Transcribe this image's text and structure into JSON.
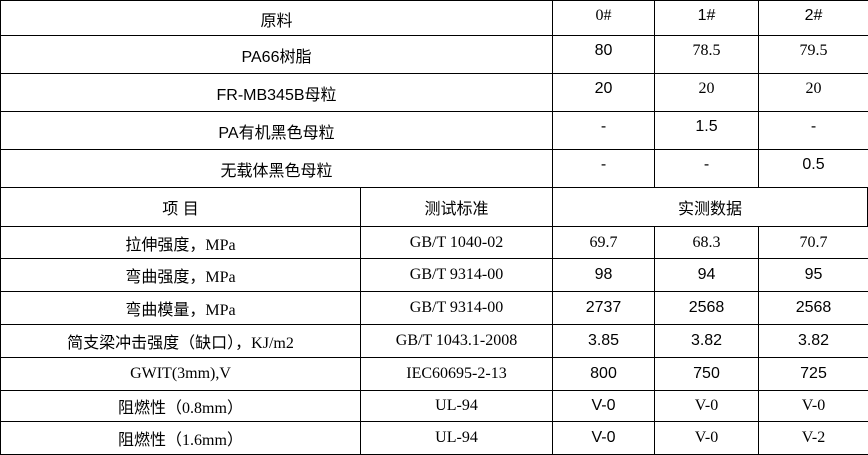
{
  "formulation": {
    "header": [
      "原料",
      "0#",
      "1#",
      "2#"
    ],
    "rows": [
      {
        "material": "PA66树脂",
        "values": [
          "80",
          "78.5",
          "79.5"
        ]
      },
      {
        "material": "FR-MB345B母粒",
        "values": [
          "20",
          "20",
          "20"
        ]
      },
      {
        "material": "PA有机黑色母粒",
        "values": [
          "-",
          "1.5",
          "-"
        ]
      },
      {
        "material": "无载体黑色母粒",
        "values": [
          "-",
          "-",
          "0.5"
        ]
      }
    ]
  },
  "properties": {
    "header": {
      "item": "项 目",
      "standard": "测试标准",
      "measured": "实测数据"
    },
    "rows": [
      {
        "item": "拉伸强度，MPa",
        "standard": "GB/T 1040-02",
        "values": [
          "69.7",
          "68.3",
          "70.7"
        ]
      },
      {
        "item": "弯曲强度，MPa",
        "standard": "GB/T 9314-00",
        "values": [
          "98",
          "94",
          "95"
        ]
      },
      {
        "item": "弯曲模量，MPa",
        "standard": "GB/T 9314-00",
        "values": [
          "2737",
          "2568",
          "2568"
        ]
      },
      {
        "item": "简支梁冲击强度（缺口），KJ/m2",
        "standard": "GB/T 1043.1-2008",
        "values": [
          "3.85",
          "3.82",
          "3.82"
        ]
      },
      {
        "item": "GWIT(3mm),V",
        "standard": "IEC60695-2-13",
        "values": [
          "800",
          "750",
          "725"
        ]
      },
      {
        "item": "阻燃性（0.8mm）",
        "standard": "UL-94",
        "values": [
          "V-0",
          "V-0",
          "V-0"
        ]
      },
      {
        "item": "阻燃性（1.6mm）",
        "standard": "UL-94",
        "values": [
          "V-0",
          "V-0",
          "V-2"
        ]
      }
    ]
  }
}
